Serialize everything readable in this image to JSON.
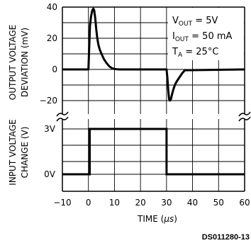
{
  "chart_data": {
    "type": "line",
    "x_axis": {
      "label": "TIME (µs)",
      "label_prefix": "TIME (",
      "label_unit": "µs",
      "label_suffix": ")",
      "range": [
        -10,
        60
      ],
      "ticks": [
        -10,
        0,
        10,
        20,
        30,
        40,
        50,
        60
      ],
      "tick_labels": [
        "−10",
        "0",
        "10",
        "20",
        "30",
        "40",
        "50",
        "60"
      ]
    },
    "panels": [
      {
        "id": "output",
        "ylabel_lines": [
          "OUTPUT VOLTAGE",
          "DEVIATION (mV)"
        ],
        "ylim": [
          -30,
          40
        ],
        "yticks": [
          -20,
          0,
          20,
          40
        ],
        "ytick_labels": [
          "−20",
          "0",
          "20",
          "40"
        ],
        "series": [
          {
            "x": [
              -10,
              0,
              0.3,
              0.6,
              1.0,
              1.5,
              1.9,
              2.2,
              2.6,
              3.0,
              3.4,
              3.8,
              4.3,
              5.0,
              6.0,
              7.0,
              8.0,
              9.0,
              10.0,
              11.0,
              12.0,
              20.0,
              30.0,
              30.3,
              30.7,
              31.0,
              31.3,
              31.7,
              32.1,
              32.6,
              33.2,
              34.0,
              35.0,
              36.0,
              37.0,
              60.0
            ],
            "y": [
              0,
              0,
              14,
              28,
              34,
              38,
              39,
              38,
              33,
              26,
              20,
              16,
              13,
              10,
              6.5,
              4,
              2,
              0.8,
              0.3,
              0.1,
              0,
              0,
              0,
              -5,
              -14,
              -19,
              -20,
              -19,
              -16,
              -13,
              -10,
              -7.5,
              -5,
              -2.5,
              -0.5,
              0
            ]
          }
        ],
        "grid": true
      },
      {
        "id": "input",
        "ylabel_lines": [
          "INPUT VOLTAGE",
          "CHANGE (V)"
        ],
        "ytick_labels": [
          "3V",
          "0V"
        ],
        "series": [
          {
            "x": [
              -10,
              0.5,
              0.5,
              30,
              30,
              60
            ],
            "y": [
              0,
              0,
              3,
              3,
              0,
              0
            ]
          }
        ],
        "grid": true
      }
    ],
    "conditions": [
      {
        "main": "V",
        "sub": "OUT",
        "rest": " = 5V"
      },
      {
        "main": "I",
        "sub": "OUT",
        "rest": " = 50 mA"
      },
      {
        "main": "T",
        "sub": "A",
        "rest": " = 25°C"
      }
    ],
    "reference": "DS011280-13"
  }
}
